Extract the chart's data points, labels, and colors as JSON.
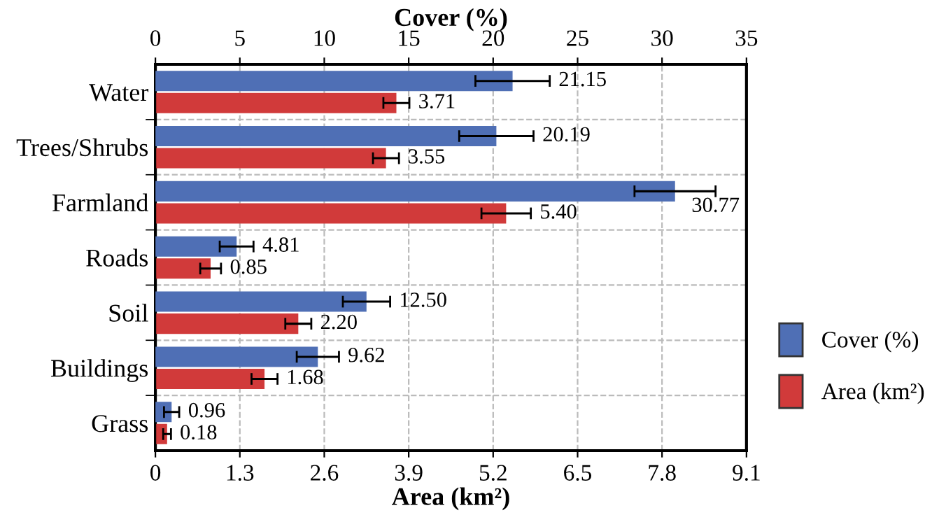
{
  "chart_data": {
    "type": "bar",
    "orientation": "horizontal",
    "xlabel": "Area (km²)",
    "x2label": "Cover (%)",
    "categories": [
      "Water",
      "Trees/Shrubs",
      "Farmland",
      "Roads",
      "Soil",
      "Buildings",
      "Grass"
    ],
    "series": [
      {
        "name": "Cover (%)",
        "color": "#4f6fb5",
        "axis": "x2",
        "values": [
          21.15,
          20.19,
          30.77,
          4.81,
          12.5,
          9.62,
          0.96
        ],
        "errors": [
          2.2,
          2.2,
          2.4,
          1.0,
          1.4,
          1.25,
          0.45
        ],
        "value_labels": [
          "21.15",
          "20.19",
          "30.77",
          "4.81",
          "12.50",
          "9.62",
          "0.96"
        ]
      },
      {
        "name": "Area (km²)",
        "color": "#d13a3a",
        "values": [
          3.71,
          3.55,
          5.4,
          0.85,
          2.2,
          1.68,
          0.18
        ],
        "errors": [
          0.2,
          0.2,
          0.38,
          0.16,
          0.2,
          0.2,
          0.06
        ],
        "value_labels": [
          "3.71",
          "3.55",
          "5.40",
          "0.85",
          "2.20",
          "1.68",
          "0.18"
        ]
      }
    ],
    "xlim": [
      0,
      9.1
    ],
    "xticks": [
      0,
      1.3,
      2.6,
      3.9,
      5.2,
      6.5,
      7.8,
      9.1
    ],
    "x2lim": [
      0,
      35
    ],
    "x2ticks": [
      0,
      5,
      10,
      15,
      20,
      25,
      30,
      35
    ],
    "grid": true,
    "legend": "right"
  }
}
